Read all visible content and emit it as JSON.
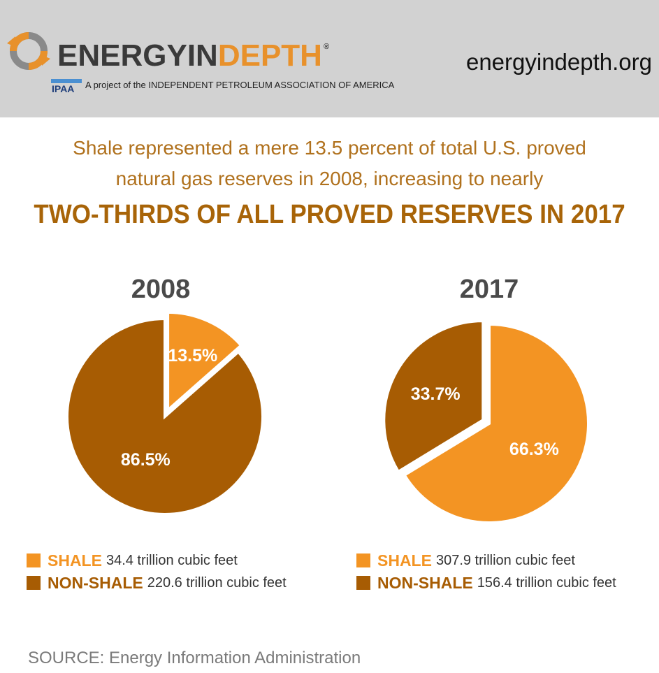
{
  "header": {
    "brand_part1": "ENERGYIN",
    "brand_part2": "DEPTH",
    "registered_mark": "®",
    "badge_text": "IPAA",
    "tagline": "A project of the INDEPENDENT PETROLEUM ASSOCIATION OF AMERICA",
    "url": "energyindepth.org"
  },
  "headline": {
    "line1": "Shale represented a mere 13.5 percent of total U.S. proved",
    "line2": "natural gas reserves in 2008, increasing to nearly",
    "line3": "TWO-THIRDS OF ALL PROVED RESERVES IN 2017"
  },
  "colors": {
    "shale": "#f39423",
    "non_shale": "#a75c03",
    "title": "#b0711d"
  },
  "chart_data": [
    {
      "type": "pie",
      "title": "2008",
      "slices": [
        {
          "name": "SHALE",
          "value": 13.5,
          "label": "13.5%",
          "detail": "34.4 trillion cubic feet",
          "color": "#f39423"
        },
        {
          "name": "NON-SHALE",
          "value": 86.5,
          "label": "86.5%",
          "detail": "220.6 trillion cubic feet",
          "color": "#a75c03"
        }
      ]
    },
    {
      "type": "pie",
      "title": "2017",
      "slices": [
        {
          "name": "SHALE",
          "value": 66.3,
          "label": "66.3%",
          "detail": "307.9 trillion cubic feet",
          "color": "#f39423"
        },
        {
          "name": "NON-SHALE",
          "value": 33.7,
          "label": "33.7%",
          "detail": "156.4 trillion cubic feet",
          "color": "#a75c03"
        }
      ]
    }
  ],
  "source": "SOURCE: Energy Information Administration"
}
